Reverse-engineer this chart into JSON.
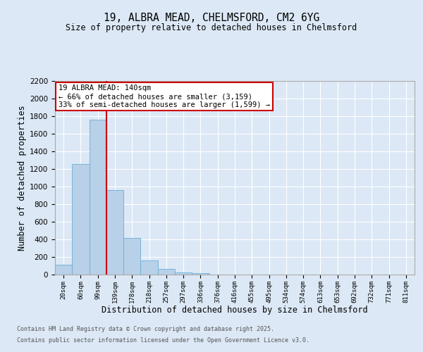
{
  "title1": "19, ALBRA MEAD, CHELMSFORD, CM2 6YG",
  "title2": "Size of property relative to detached houses in Chelmsford",
  "xlabel": "Distribution of detached houses by size in Chelmsford",
  "ylabel": "Number of detached properties",
  "categories": [
    "20sqm",
    "60sqm",
    "99sqm",
    "139sqm",
    "178sqm",
    "218sqm",
    "257sqm",
    "297sqm",
    "336sqm",
    "376sqm",
    "416sqm",
    "455sqm",
    "495sqm",
    "534sqm",
    "574sqm",
    "613sqm",
    "653sqm",
    "692sqm",
    "732sqm",
    "771sqm",
    "811sqm"
  ],
  "values": [
    115,
    1260,
    1760,
    960,
    420,
    160,
    65,
    25,
    15,
    0,
    0,
    0,
    0,
    0,
    0,
    0,
    0,
    0,
    0,
    0,
    0
  ],
  "bar_color": "#b8d0e8",
  "bar_edge_color": "#6baed6",
  "background_color": "#dce8f5",
  "grid_color": "#ffffff",
  "vline_x": 2.5,
  "vline_color": "#cc0000",
  "annotation_text": "19 ALBRA MEAD: 140sqm\n← 66% of detached houses are smaller (3,159)\n33% of semi-detached houses are larger (1,599) →",
  "annotation_box_color": "#ffffff",
  "annotation_box_edge": "#cc0000",
  "ylim": [
    0,
    2200
  ],
  "yticks": [
    0,
    200,
    400,
    600,
    800,
    1000,
    1200,
    1400,
    1600,
    1800,
    2000,
    2200
  ],
  "footer1": "Contains HM Land Registry data © Crown copyright and database right 2025.",
  "footer2": "Contains public sector information licensed under the Open Government Licence v3.0."
}
